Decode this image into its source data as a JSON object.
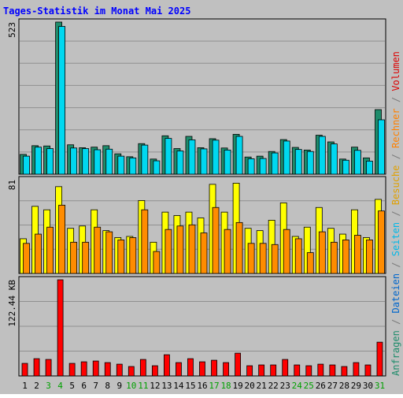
{
  "chart_data": {
    "type": "bar",
    "title": "Tages-Statistik im Monat Mai 2025",
    "categories": [
      "1",
      "2",
      "3",
      "4",
      "5",
      "6",
      "7",
      "8",
      "9",
      "10",
      "11",
      "12",
      "13",
      "14",
      "15",
      "16",
      "17",
      "18",
      "19",
      "20",
      "21",
      "22",
      "23",
      "24",
      "25",
      "26",
      "27",
      "28",
      "29",
      "30",
      "31"
    ],
    "weekend_days": [
      "3",
      "4",
      "10",
      "11",
      "17",
      "18",
      "24",
      "25",
      "31"
    ],
    "panels": [
      {
        "id": "top",
        "max_label": "523",
        "ymax": 523,
        "series": [
          {
            "name": "Anfragen",
            "color": "#1e8c6b",
            "values": [
              68,
              98,
              97,
              523,
              101,
              91,
              93,
              98,
              70,
              60,
              105,
              52,
              132,
              88,
              130,
              91,
              122,
              90,
              137,
              59,
              62,
              78,
              119,
              92,
              83,
              134,
              111,
              52,
              93,
              56,
              222
            ]
          },
          {
            "name": "Dateien",
            "color": "#00d8f0",
            "values": [
              62,
              93,
              88,
              508,
              90,
              88,
              84,
              86,
              62,
              56,
              100,
              46,
              123,
              80,
              118,
              87,
              117,
              83,
              130,
              53,
              54,
              73,
              114,
              85,
              78,
              130,
              104,
              48,
              82,
              45,
              187
            ]
          }
        ]
      },
      {
        "id": "middle",
        "max_label": "81",
        "ymax": 81,
        "series": [
          {
            "name": "Seiten",
            "color": "#ffff00",
            "values": [
              30,
              58,
              55,
              75,
              39,
              41,
              55,
              37,
              31,
              32,
              63,
              27,
              53,
              50,
              53,
              48,
              77,
              53,
              78,
              39,
              37,
              46,
              61,
              32,
              40,
              57,
              39,
              34,
              55,
              31,
              64
            ]
          },
          {
            "name": "Besuche",
            "color": "#ff8c00",
            "values": [
              26,
              34,
              40,
              59,
              27,
              27,
              40,
              36,
              29,
              31,
              55,
              19,
              38,
              41,
              42,
              35,
              57,
              38,
              44,
              26,
              26,
              25,
              38,
              30,
              18,
              36,
              27,
              29,
              33,
              29,
              54
            ]
          }
        ]
      },
      {
        "id": "bottom",
        "max_label": "122.44 KB",
        "ymax": 122.44,
        "series": [
          {
            "name": "Volumen",
            "color": "#ff0000",
            "values": [
              16,
              22,
              21,
              122.44,
              16,
              18,
              19,
              17,
              15,
              12,
              21,
              13,
              27,
              17,
              22,
              18,
              20,
              17,
              29,
              13,
              14,
              14,
              21,
              14,
              13,
              15,
              14,
              12,
              17,
              14,
              43
            ]
          }
        ]
      }
    ],
    "right_legend": [
      {
        "text": "Anfragen",
        "color": "#1e8c6b"
      },
      {
        "text": " / ",
        "color": "#7a7a7a"
      },
      {
        "text": "Dateien",
        "color": "#0066cc"
      },
      {
        "text": " / ",
        "color": "#7a7a7a"
      },
      {
        "text": "Seiten",
        "color": "#00b8e8"
      },
      {
        "text": " / ",
        "color": "#7a7a7a"
      },
      {
        "text": "Besuche",
        "color": "#e0a000"
      },
      {
        "text": " / ",
        "color": "#7a7a7a"
      },
      {
        "text": "Rechner",
        "color": "#ff8000"
      },
      {
        "text": " / ",
        "color": "#7a7a7a"
      },
      {
        "text": "Volumen",
        "color": "#dd0000"
      }
    ],
    "colors": {
      "title": "#0000ff",
      "weekday_label": "#000000",
      "weekend_label": "#00a000",
      "background": "#c0c0c0",
      "plot_background": "#c0c0c0",
      "grid": "#909090"
    }
  }
}
